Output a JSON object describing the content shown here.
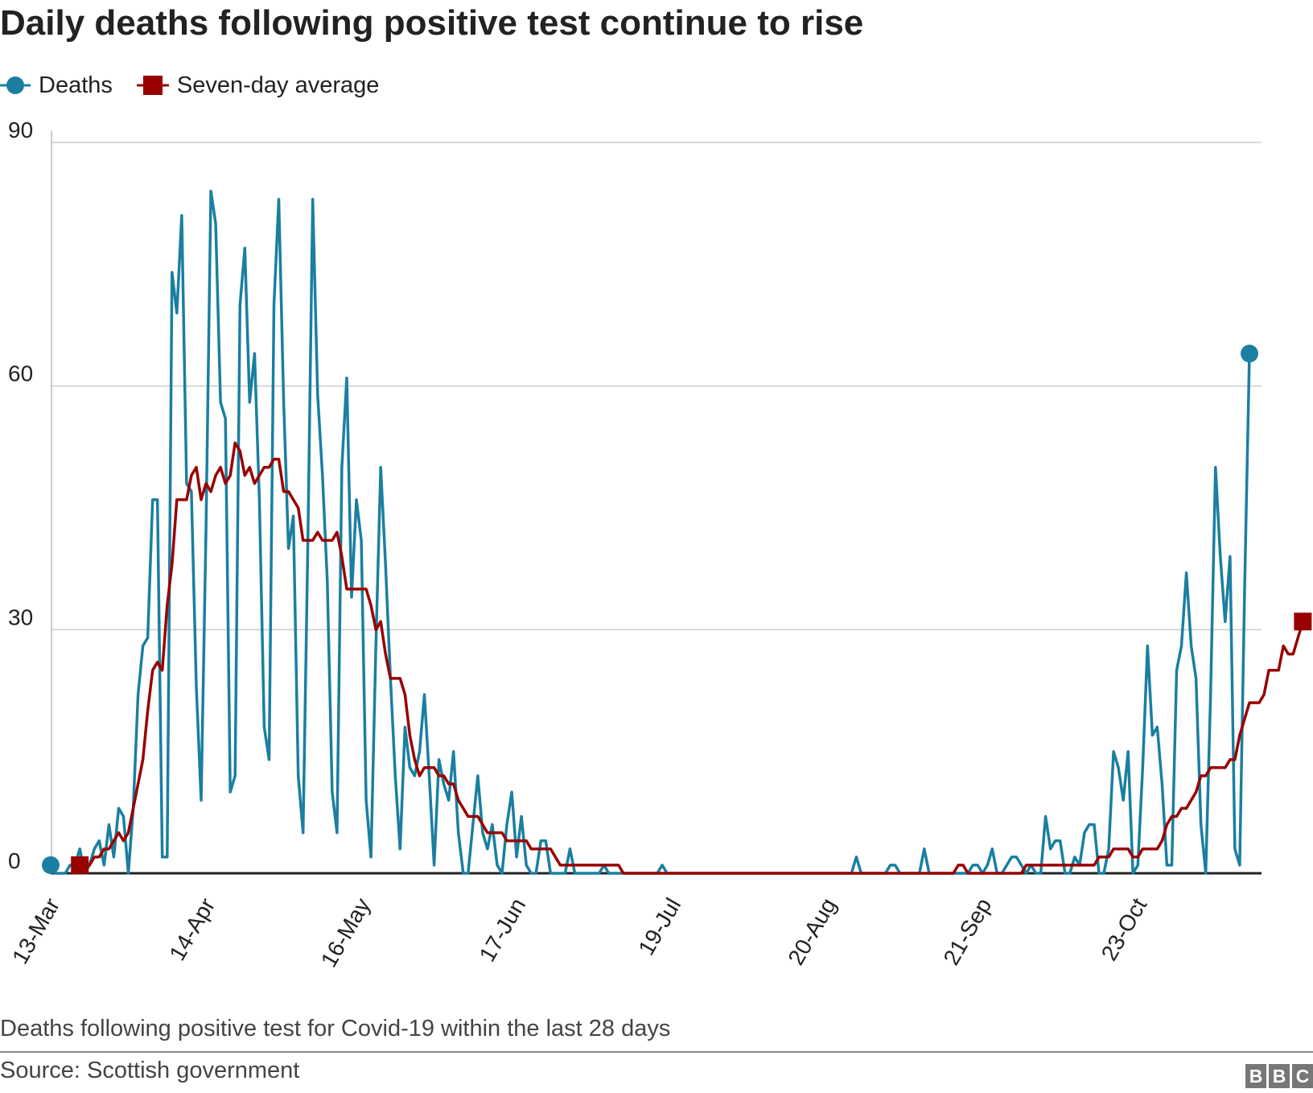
{
  "title": "Daily deaths following positive test continue to rise",
  "legend": {
    "deaths_label": "Deaths",
    "average_label": "Seven-day average"
  },
  "footnote": "Deaths following positive test for Covid-19 within the last 28 days",
  "source": "Source: Scottish government",
  "logo": [
    "B",
    "B",
    "C"
  ],
  "colors": {
    "deaths": "#1a7fa1",
    "average": "#990000",
    "grid": "#cccccc",
    "axis": "#222222"
  },
  "chart_data": {
    "type": "line",
    "x_start": "13-Mar",
    "x_end": "05-Nov",
    "x_tick_labels": [
      "13-Mar",
      "14-Apr",
      "16-May",
      "17-Jun",
      "19-Jul",
      "20-Aug",
      "21-Sep",
      "23-Oct"
    ],
    "x_tick_days": [
      0,
      32,
      64,
      96,
      128,
      160,
      192,
      224
    ],
    "y_ticks": [
      0,
      30,
      60,
      90
    ],
    "ylim": [
      0,
      90
    ],
    "grid": true,
    "legend_position": "top-left",
    "series": [
      {
        "name": "Deaths",
        "marker": "circle",
        "values": [
          1,
          0,
          0,
          0,
          1,
          1,
          3,
          0,
          1,
          3,
          4,
          1,
          6,
          2,
          8,
          7,
          0,
          8,
          22,
          28,
          29,
          46,
          46,
          2,
          2,
          74,
          69,
          81,
          48,
          47,
          23,
          9,
          42,
          84,
          80,
          58,
          56,
          10,
          12,
          70,
          77,
          58,
          64,
          46,
          18,
          14,
          70,
          83,
          58,
          40,
          44,
          12,
          5,
          41,
          83,
          59,
          49,
          36,
          10,
          5,
          50,
          61,
          34,
          46,
          41,
          9,
          2,
          28,
          50,
          38,
          24,
          12,
          3,
          18,
          13,
          12,
          15,
          22,
          12,
          1,
          14,
          11,
          9,
          15,
          5,
          0,
          0,
          6,
          12,
          5,
          3,
          6,
          1,
          0,
          6,
          10,
          2,
          7,
          1,
          0,
          0,
          4,
          4,
          0,
          0,
          0,
          0,
          3,
          0,
          0,
          0,
          0,
          0,
          0,
          1,
          0,
          0,
          0,
          0,
          0,
          0,
          0,
          0,
          0,
          0,
          0,
          1,
          0,
          0,
          0,
          0,
          0,
          0,
          0,
          0,
          0,
          0,
          0,
          0,
          0,
          0,
          0,
          0,
          0,
          0,
          0,
          0,
          0,
          0,
          0,
          0,
          0,
          0,
          0,
          0,
          0,
          0,
          0,
          0,
          0,
          0,
          0,
          0,
          0,
          0,
          0,
          2,
          0,
          0,
          0,
          0,
          0,
          0,
          1,
          1,
          0,
          0,
          0,
          0,
          0,
          3,
          0,
          0,
          0,
          0,
          0,
          0,
          0,
          0,
          0,
          1,
          1,
          0,
          1,
          3,
          0,
          0,
          1,
          2,
          2,
          1,
          0,
          1,
          0,
          0,
          7,
          3,
          4,
          4,
          0,
          0,
          2,
          1,
          5,
          6,
          6,
          0,
          0,
          3,
          15,
          13,
          9,
          15,
          0,
          1,
          13,
          28,
          17,
          18,
          11,
          1,
          1,
          25,
          28,
          37,
          28,
          24,
          6,
          0,
          22,
          50,
          39,
          31,
          39,
          3,
          1,
          35,
          64
        ],
        "unit": "deaths"
      },
      {
        "name": "Seven-day average",
        "marker": "square",
        "start_day": 6,
        "values": [
          1,
          1,
          1,
          2,
          2,
          3,
          3,
          4,
          5,
          4,
          5,
          8,
          11,
          14,
          20,
          25,
          26,
          25,
          33,
          38,
          46,
          46,
          46,
          49,
          50,
          46,
          48,
          47,
          49,
          50,
          48,
          49,
          53,
          52,
          49,
          50,
          48,
          49,
          50,
          50,
          51,
          51,
          47,
          47,
          46,
          45,
          41,
          41,
          41,
          42,
          41,
          41,
          41,
          42,
          39,
          35,
          35,
          35,
          35,
          35,
          33,
          30,
          31,
          27,
          24,
          24,
          24,
          22,
          17,
          14,
          12,
          13,
          13,
          13,
          12,
          12,
          11,
          11,
          9,
          8,
          7,
          7,
          7,
          6,
          5,
          5,
          5,
          5,
          4,
          4,
          4,
          4,
          4,
          3,
          3,
          3,
          3,
          3,
          2,
          1,
          1,
          1,
          1,
          1,
          1,
          1,
          1,
          1,
          1,
          1,
          1,
          1,
          0,
          0,
          0,
          0,
          0,
          0,
          0,
          0,
          0,
          0,
          0,
          0,
          0,
          0,
          0,
          0,
          0,
          0,
          0,
          0,
          0,
          0,
          0,
          0,
          0,
          0,
          0,
          0,
          0,
          0,
          0,
          0,
          0,
          0,
          0,
          0,
          0,
          0,
          0,
          0,
          0,
          0,
          0,
          0,
          0,
          0,
          0,
          0,
          0,
          0,
          0,
          0,
          0,
          0,
          0,
          0,
          0,
          0,
          0,
          0,
          0,
          0,
          0,
          0,
          0,
          0,
          0,
          0,
          0,
          1,
          1,
          0,
          0,
          0,
          0,
          0,
          0,
          0,
          0,
          0,
          0,
          0,
          0,
          1,
          1,
          1,
          1,
          1,
          1,
          1,
          1,
          1,
          1,
          1,
          1,
          1,
          1,
          1,
          2,
          2,
          2,
          3,
          3,
          3,
          3,
          2,
          2,
          3,
          3,
          3,
          3,
          4,
          6,
          7,
          7,
          8,
          8,
          9,
          10,
          12,
          12,
          13,
          13,
          13,
          13,
          14,
          14,
          17,
          19,
          21,
          21,
          21,
          22,
          25,
          25,
          25,
          28,
          27,
          27,
          29,
          31
        ]
      }
    ]
  }
}
